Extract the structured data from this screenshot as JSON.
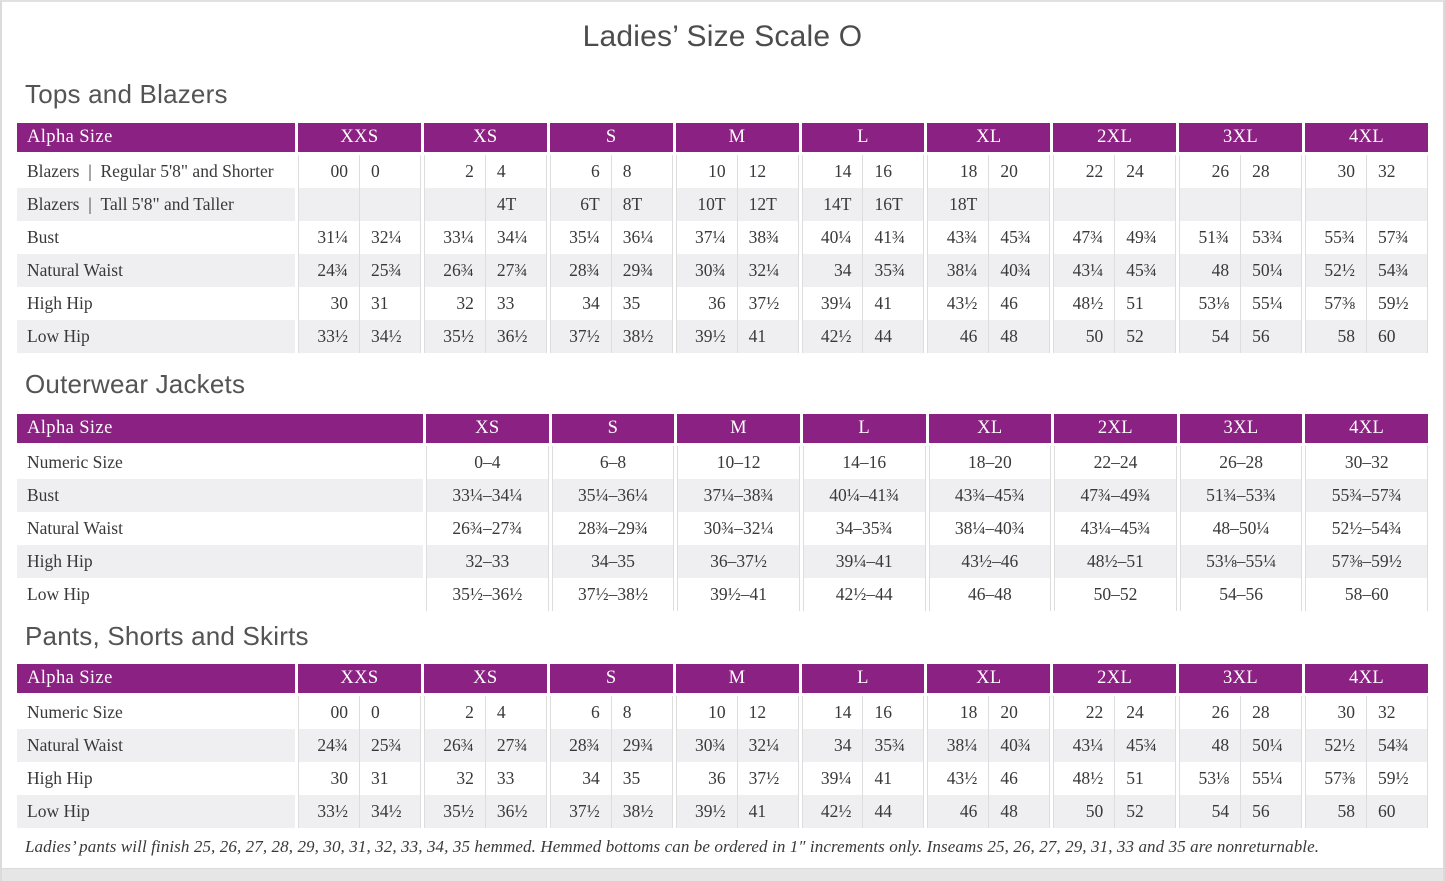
{
  "page": {
    "title": "Ladies’ Size Scale O",
    "footnote": "Ladies’ pants will finish 25, 26, 27, 28, 29, 30, 31, 32, 33, 34, 35 hemmed. Hemmed bottoms can be ordered in 1″ increments only. Inseams 25, 26, 27, 29, 31, 33 and 35 are nonreturnable."
  },
  "colors": {
    "accent": "#8b2182",
    "stripe": "#efeef0",
    "grid_line": "#dedcdd",
    "heading_text": "#545454",
    "body_text": "#3a383a"
  },
  "tables": [
    {
      "id": "tops-and-blazers",
      "section_title": "Tops and Blazers",
      "header_label": "Alpha Size",
      "columns": [
        "XXS",
        "XS",
        "S",
        "M",
        "L",
        "XL",
        "2XL",
        "3XL",
        "4XL"
      ],
      "rows": [
        {
          "label": "Blazers | Regular 5'8\" and Shorter",
          "values": [
            [
              "00",
              "0"
            ],
            [
              "2",
              "4"
            ],
            [
              "6",
              "8"
            ],
            [
              "10",
              "12"
            ],
            [
              "14",
              "16"
            ],
            [
              "18",
              "20"
            ],
            [
              "22",
              "24"
            ],
            [
              "26",
              "28"
            ],
            [
              "30",
              "32"
            ]
          ]
        },
        {
          "label": "Blazers | Tall 5'8\" and Taller",
          "values": [
            [
              "",
              ""
            ],
            [
              "",
              "4T"
            ],
            [
              "6T",
              "8T"
            ],
            [
              "10T",
              "12T"
            ],
            [
              "14T",
              "16T"
            ],
            [
              "18T",
              ""
            ],
            [
              "",
              ""
            ],
            [
              "",
              ""
            ],
            [
              "",
              ""
            ]
          ]
        },
        {
          "label": "Bust",
          "values": [
            [
              "31¼",
              "32¼"
            ],
            [
              "33¼",
              "34¼"
            ],
            [
              "35¼",
              "36¼"
            ],
            [
              "37¼",
              "38¾"
            ],
            [
              "40¼",
              "41¾"
            ],
            [
              "43¾",
              "45¾"
            ],
            [
              "47¾",
              "49¾"
            ],
            [
              "51¾",
              "53¾"
            ],
            [
              "55¾",
              "57¾"
            ]
          ]
        },
        {
          "label": "Natural Waist",
          "values": [
            [
              "24¾",
              "25¾"
            ],
            [
              "26¾",
              "27¾"
            ],
            [
              "28¾",
              "29¾"
            ],
            [
              "30¾",
              "32¼"
            ],
            [
              "34",
              "35¾"
            ],
            [
              "38¼",
              "40¾"
            ],
            [
              "43¼",
              "45¾"
            ],
            [
              "48",
              "50¼"
            ],
            [
              "52½",
              "54¾"
            ]
          ]
        },
        {
          "label": "High Hip",
          "values": [
            [
              "30",
              "31"
            ],
            [
              "32",
              "33"
            ],
            [
              "34",
              "35"
            ],
            [
              "36",
              "37½"
            ],
            [
              "39¼",
              "41"
            ],
            [
              "43½",
              "46"
            ],
            [
              "48½",
              "51"
            ],
            [
              "53⅛",
              "55¼"
            ],
            [
              "57⅜",
              "59½"
            ]
          ]
        },
        {
          "label": "Low Hip",
          "values": [
            [
              "33½",
              "34½"
            ],
            [
              "35½",
              "36½"
            ],
            [
              "37½",
              "38½"
            ],
            [
              "39½",
              "41"
            ],
            [
              "42½",
              "44"
            ],
            [
              "46",
              "48"
            ],
            [
              "50",
              "52"
            ],
            [
              "54",
              "56"
            ],
            [
              "58",
              "60"
            ]
          ]
        }
      ]
    },
    {
      "id": "outerwear-jackets",
      "section_title": "Outerwear Jackets",
      "header_label": "Alpha Size",
      "columns": [
        "XS",
        "S",
        "M",
        "L",
        "XL",
        "2XL",
        "3XL",
        "4XL"
      ],
      "rows": [
        {
          "label": "Numeric Size",
          "values": [
            "0–4",
            "6–8",
            "10–12",
            "14–16",
            "18–20",
            "22–24",
            "26–28",
            "30–32"
          ]
        },
        {
          "label": "Bust",
          "values": [
            "33¼–34¼",
            "35¼–36¼",
            "37¼–38¾",
            "40¼–41¾",
            "43¾–45¾",
            "47¾–49¾",
            "51¾–53¾",
            "55¾–57¾"
          ]
        },
        {
          "label": "Natural Waist",
          "values": [
            "26¾–27¾",
            "28¾–29¾",
            "30¾–32¼",
            "34–35¾",
            "38¼–40¾",
            "43¼–45¾",
            "48–50¼",
            "52½–54¾"
          ]
        },
        {
          "label": "High Hip",
          "values": [
            "32–33",
            "34–35",
            "36–37½",
            "39¼–41",
            "43½–46",
            "48½–51",
            "53⅛–55¼",
            "57⅜–59½"
          ]
        },
        {
          "label": "Low Hip",
          "values": [
            "35½–36½",
            "37½–38½",
            "39½–41",
            "42½–44",
            "46–48",
            "50–52",
            "54–56",
            "58–60"
          ]
        }
      ]
    },
    {
      "id": "pants-shorts-skirts",
      "section_title": "Pants, Shorts and Skirts",
      "header_label": "Alpha Size",
      "columns": [
        "XXS",
        "XS",
        "S",
        "M",
        "L",
        "XL",
        "2XL",
        "3XL",
        "4XL"
      ],
      "rows": [
        {
          "label": "Numeric Size",
          "values": [
            [
              "00",
              "0"
            ],
            [
              "2",
              "4"
            ],
            [
              "6",
              "8"
            ],
            [
              "10",
              "12"
            ],
            [
              "14",
              "16"
            ],
            [
              "18",
              "20"
            ],
            [
              "22",
              "24"
            ],
            [
              "26",
              "28"
            ],
            [
              "30",
              "32"
            ]
          ]
        },
        {
          "label": "Natural Waist",
          "values": [
            [
              "24¾",
              "25¾"
            ],
            [
              "26¾",
              "27¾"
            ],
            [
              "28¾",
              "29¾"
            ],
            [
              "30¾",
              "32¼"
            ],
            [
              "34",
              "35¾"
            ],
            [
              "38¼",
              "40¾"
            ],
            [
              "43¼",
              "45¾"
            ],
            [
              "48",
              "50¼"
            ],
            [
              "52½",
              "54¾"
            ]
          ]
        },
        {
          "label": "High Hip",
          "values": [
            [
              "30",
              "31"
            ],
            [
              "32",
              "33"
            ],
            [
              "34",
              "35"
            ],
            [
              "36",
              "37½"
            ],
            [
              "39¼",
              "41"
            ],
            [
              "43½",
              "46"
            ],
            [
              "48½",
              "51"
            ],
            [
              "53⅛",
              "55¼"
            ],
            [
              "57⅜",
              "59½"
            ]
          ]
        },
        {
          "label": "Low Hip",
          "values": [
            [
              "33½",
              "34½"
            ],
            [
              "35½",
              "36½"
            ],
            [
              "37½",
              "38½"
            ],
            [
              "39½",
              "41"
            ],
            [
              "42½",
              "44"
            ],
            [
              "46",
              "48"
            ],
            [
              "50",
              "52"
            ],
            [
              "54",
              "56"
            ],
            [
              "58",
              "60"
            ]
          ]
        }
      ]
    }
  ]
}
